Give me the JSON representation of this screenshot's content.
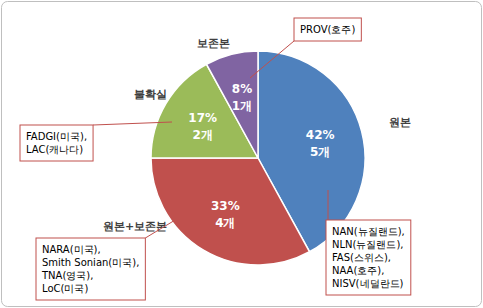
{
  "chart_data": {
    "type": "pie",
    "categories": [
      "원본",
      "원본+보존본",
      "불확실",
      "보존본"
    ],
    "values": [
      42,
      33,
      17,
      8
    ],
    "value_labels": [
      "42%",
      "33%",
      "17%",
      "8%"
    ],
    "count_labels": [
      "5개",
      "4개",
      "2개",
      "1개"
    ],
    "colors": [
      "#4f81bd",
      "#c0504d",
      "#9bbb59",
      "#8064a2"
    ],
    "data_labels": true,
    "callouts": [
      [
        "NAN(뉴질랜드),",
        "NLN(뉴질랜드),",
        "FAS(스위스),",
        "NAA(호주),",
        "NISV(네덜란드)"
      ],
      [
        "NARA(미국),",
        "Smith Sonian(미국),",
        "TNA(영국),",
        "LoC(미국)"
      ],
      [
        "FADGI(미국),",
        "LAC(캐나다)"
      ],
      [
        "PROV(호주)"
      ]
    ]
  }
}
